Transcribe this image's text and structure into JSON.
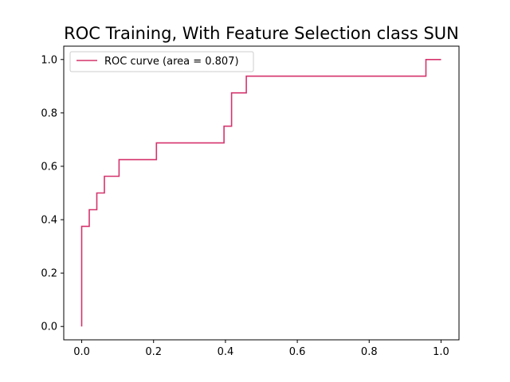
{
  "chart_data": {
    "type": "line",
    "title": "ROC Training, With Feature Selection class SUN",
    "xlabel": "",
    "ylabel": "",
    "xlim": [
      -0.05,
      1.05
    ],
    "ylim": [
      -0.05,
      1.05
    ],
    "xticks": [
      0.0,
      0.2,
      0.4,
      0.6,
      0.8,
      1.0
    ],
    "yticks": [
      0.0,
      0.2,
      0.4,
      0.6,
      0.8,
      1.0
    ],
    "xtick_labels": [
      "0.0",
      "0.2",
      "0.4",
      "0.6",
      "0.8",
      "1.0"
    ],
    "ytick_labels": [
      "0.0",
      "0.2",
      "0.4",
      "0.6",
      "0.8",
      "1.0"
    ],
    "grid": false,
    "legend_position": "top-left",
    "series": [
      {
        "name": "ROC curve (area = 0.807)",
        "color": "#d6336c",
        "step": true,
        "x": [
          0.0,
          0.0,
          0.021,
          0.021,
          0.042,
          0.042,
          0.063,
          0.063,
          0.104,
          0.104,
          0.208,
          0.208,
          0.396,
          0.396,
          0.417,
          0.417,
          0.458,
          0.458,
          0.958,
          0.958,
          1.0
        ],
        "y": [
          0.0,
          0.375,
          0.375,
          0.4375,
          0.4375,
          0.5,
          0.5,
          0.5625,
          0.5625,
          0.625,
          0.625,
          0.6875,
          0.6875,
          0.75,
          0.75,
          0.875,
          0.875,
          0.9375,
          0.9375,
          1.0,
          1.0
        ]
      }
    ]
  }
}
